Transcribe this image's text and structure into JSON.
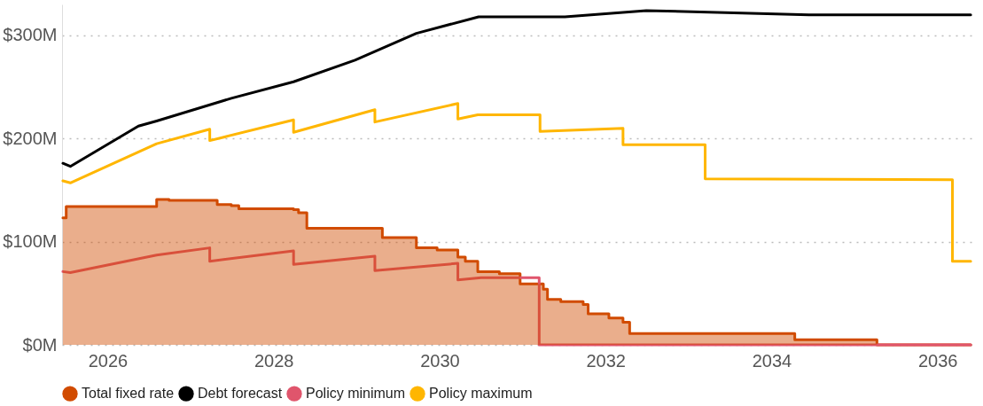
{
  "chart_data": {
    "type": "line",
    "xlim": [
      2025.45,
      2036.42
    ],
    "ylim": [
      0,
      330
    ],
    "xticks": [
      2026,
      2028,
      2030,
      2032,
      2034,
      2036
    ],
    "yticks": [
      {
        "value": 0,
        "label": "$0M"
      },
      {
        "value": 100,
        "label": "$100M"
      },
      {
        "value": 200,
        "label": "$200M"
      },
      {
        "value": 300,
        "label": "$300M"
      }
    ],
    "grid": "y",
    "legend": "bottom",
    "series": [
      {
        "name": "Total fixed rate",
        "type": "area",
        "color": "#d14b00",
        "x": [
          2025.46,
          2025.5,
          2025.5,
          2026.59,
          2026.59,
          2026.74,
          2026.74,
          2027.32,
          2027.32,
          2027.49,
          2027.49,
          2027.58,
          2027.58,
          2028.24,
          2028.24,
          2028.3,
          2028.3,
          2028.4,
          2028.4,
          2029.31,
          2029.31,
          2029.72,
          2029.72,
          2029.97,
          2029.97,
          2030.22,
          2030.22,
          2030.31,
          2030.31,
          2030.46,
          2030.46,
          2030.72,
          2030.72,
          2030.97,
          2030.97,
          2031.25,
          2031.25,
          2031.3,
          2031.3,
          2031.46,
          2031.46,
          2031.73,
          2031.73,
          2031.79,
          2031.79,
          2032.04,
          2032.04,
          2032.21,
          2032.21,
          2032.29,
          2032.29,
          2034.28,
          2034.28,
          2035.27,
          2035.27,
          2036.4
        ],
        "values": [
          123,
          123,
          134,
          134,
          141,
          141,
          140,
          140,
          136,
          136,
          135,
          135,
          132,
          132,
          131,
          131,
          128,
          128,
          113,
          113,
          104,
          104,
          94,
          94,
          92,
          92,
          85,
          85,
          81,
          81,
          71,
          71,
          69,
          69,
          59,
          59,
          54,
          54,
          44,
          44,
          42,
          42,
          39,
          39,
          30,
          30,
          26,
          26,
          22,
          22,
          11,
          11,
          5,
          5,
          0,
          0
        ]
      },
      {
        "name": "Debt forecast",
        "color": "#000000",
        "x": [
          2025.46,
          2025.55,
          2026.37,
          2026.59,
          2027.49,
          2028.24,
          2028.98,
          2029.72,
          2030.47,
          2031.51,
          2032.49,
          2034.45,
          2036.4
        ],
        "values": [
          176,
          173,
          212,
          217,
          239,
          255,
          276,
          302,
          318,
          318,
          324,
          320,
          320
        ]
      },
      {
        "name": "Policy minimum",
        "color": "#e0556c",
        "x": [
          2025.46,
          2025.55,
          2026.59,
          2027.23,
          2027.23,
          2028.24,
          2028.24,
          2029.22,
          2029.22,
          2030.22,
          2030.22,
          2030.5,
          2031.2,
          2031.2,
          2036.4
        ],
        "values": [
          71,
          70,
          87,
          94,
          81,
          91,
          78,
          86,
          72,
          79,
          63,
          65,
          65,
          0,
          0
        ]
      },
      {
        "name": "Policy maximum",
        "color": "#ffb600",
        "x": [
          2025.46,
          2025.55,
          2026.59,
          2027.23,
          2027.23,
          2028.24,
          2028.24,
          2029.22,
          2029.22,
          2030.22,
          2030.22,
          2030.46,
          2031.21,
          2031.21,
          2032.21,
          2032.21,
          2033.2,
          2033.2,
          2036.18,
          2036.18,
          2036.4
        ],
        "values": [
          159,
          157,
          195,
          209,
          198,
          218,
          206,
          228,
          216,
          234,
          219,
          223,
          223,
          207,
          210,
          194,
          194,
          161,
          160,
          81,
          81
        ]
      }
    ]
  }
}
